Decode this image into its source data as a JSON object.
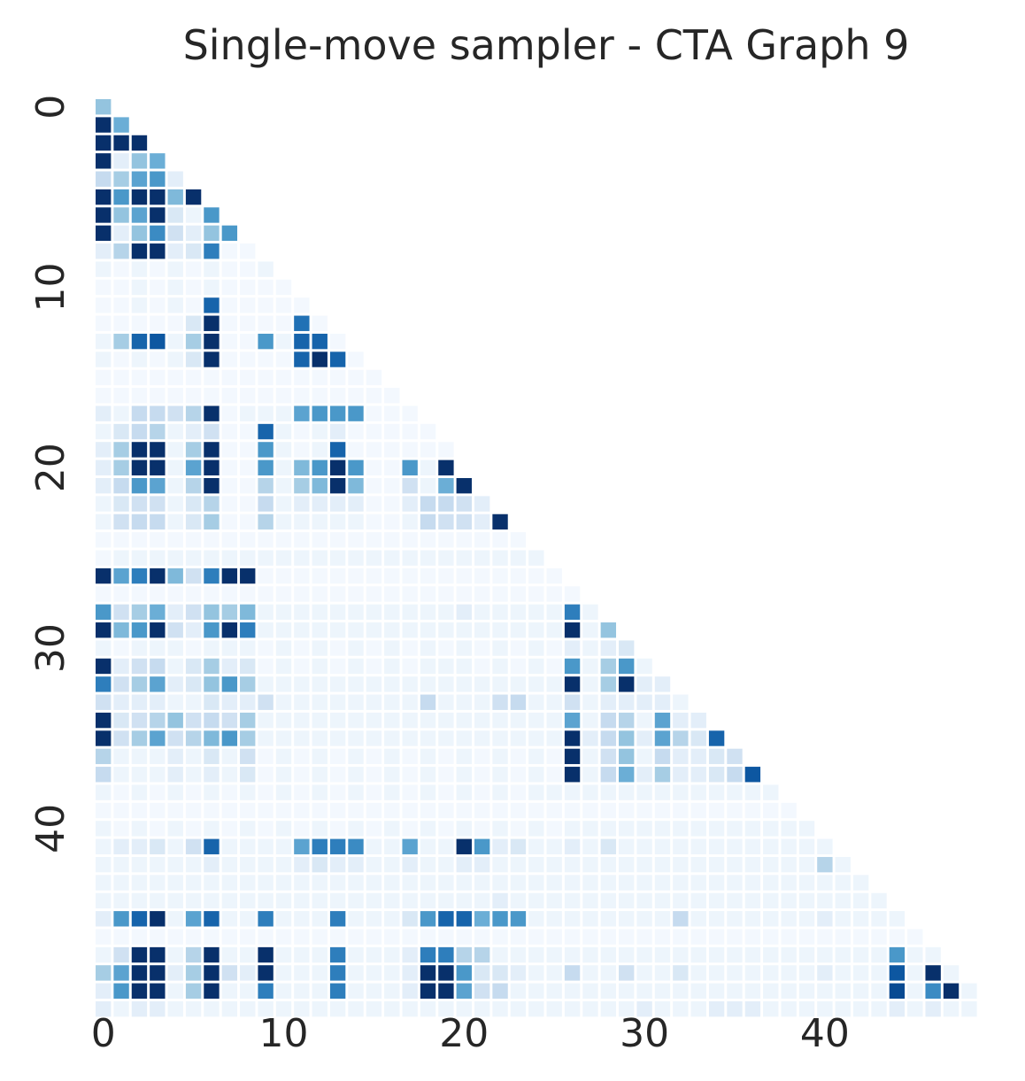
{
  "chart_data": {
    "type": "heatmap",
    "title": "Single-move sampler - CTA Graph 9",
    "xlabel": "",
    "ylabel": "",
    "n": 49,
    "layout": "lower-triangle (including diagonal), row i has columns 0..i",
    "colormap": "Blues",
    "value_range": [
      0,
      1
    ],
    "colorbar": false,
    "grid": false,
    "x_ticks": [
      0,
      10,
      20,
      30,
      40
    ],
    "y_ticks": [
      0,
      10,
      20,
      30,
      40
    ],
    "x_tick_labels": [
      "0",
      "10",
      "20",
      "30",
      "40"
    ],
    "y_tick_labels": [
      "0",
      "10",
      "20",
      "30",
      "40"
    ],
    "colors": {
      "background": "#ffffff",
      "text": "#262626",
      "low": "#f7fbff",
      "high": "#08306b"
    },
    "rows": [
      [
        0.4
      ],
      [
        1.0,
        0.5
      ],
      [
        1.0,
        1.0,
        1.0
      ],
      [
        1.0,
        0.1,
        0.4,
        0.5
      ],
      [
        0.25,
        0.35,
        0.55,
        0.6,
        0.1
      ],
      [
        1.0,
        0.6,
        1.0,
        1.0,
        0.45,
        1.0
      ],
      [
        1.0,
        0.4,
        0.55,
        1.0,
        0.15,
        0.05,
        0.6
      ],
      [
        1.0,
        0.1,
        0.4,
        0.65,
        0.2,
        0.1,
        0.4,
        0.6
      ],
      [
        0.1,
        0.3,
        1.0,
        1.0,
        0.1,
        0.15,
        0.7,
        0.02,
        0.02
      ],
      [
        0.05,
        0.02,
        0.05,
        0.02,
        0.05,
        0.02,
        0.05,
        0.02,
        0.02,
        0.05
      ],
      [
        0.02,
        0.02,
        0.05,
        0.02,
        0.05,
        0.02,
        0.05,
        0.02,
        0.02,
        0.02,
        0.02
      ],
      [
        0.02,
        0.02,
        0.05,
        0.02,
        0.05,
        0.02,
        0.8,
        0.02,
        0.02,
        0.02,
        0.02,
        0.02
      ],
      [
        0.02,
        0.02,
        0.02,
        0.02,
        0.02,
        0.15,
        1.0,
        0.02,
        0.02,
        0.02,
        0.02,
        0.75,
        0.02
      ],
      [
        0.05,
        0.35,
        0.8,
        0.85,
        0.05,
        0.35,
        1.0,
        0.02,
        0.02,
        0.6,
        0.05,
        0.8,
        0.8,
        0.02
      ],
      [
        0.05,
        0.02,
        0.05,
        0.02,
        0.05,
        0.15,
        1.0,
        0.02,
        0.02,
        0.02,
        0.02,
        0.8,
        1.0,
        0.8,
        0.02
      ],
      [
        0.02,
        0.02,
        0.02,
        0.02,
        0.02,
        0.02,
        0.02,
        0.02,
        0.02,
        0.02,
        0.02,
        0.02,
        0.02,
        0.02,
        0.02,
        0.02
      ],
      [
        0.02,
        0.02,
        0.02,
        0.02,
        0.02,
        0.02,
        0.02,
        0.02,
        0.02,
        0.02,
        0.02,
        0.02,
        0.02,
        0.02,
        0.02,
        0.02,
        0.02
      ],
      [
        0.1,
        0.05,
        0.25,
        0.25,
        0.2,
        0.3,
        1.0,
        0.02,
        0.05,
        0.05,
        0.05,
        0.55,
        0.6,
        0.6,
        0.6,
        0.02,
        0.02,
        0.02
      ],
      [
        0.05,
        0.15,
        0.25,
        0.3,
        0.05,
        0.1,
        0.2,
        0.02,
        0.02,
        0.8,
        0.05,
        0.02,
        0.05,
        0.1,
        0.02,
        0.02,
        0.02,
        0.02,
        0.02
      ],
      [
        0.1,
        0.35,
        1.0,
        1.0,
        0.05,
        0.35,
        1.0,
        0.02,
        0.02,
        0.6,
        0.05,
        0.02,
        0.05,
        0.8,
        0.02,
        0.02,
        0.02,
        0.02,
        0.02,
        0.02
      ],
      [
        0.1,
        0.35,
        1.0,
        1.0,
        0.05,
        0.55,
        1.0,
        0.02,
        0.02,
        0.6,
        0.05,
        0.45,
        0.6,
        1.0,
        0.6,
        0.02,
        0.02,
        0.6,
        0.05,
        1.0
      ],
      [
        0.1,
        0.25,
        0.6,
        0.55,
        0.05,
        0.3,
        1.0,
        0.02,
        0.02,
        0.3,
        0.05,
        0.35,
        0.45,
        1.0,
        0.45,
        0.02,
        0.02,
        0.2,
        0.05,
        0.5,
        1.0
      ],
      [
        0.05,
        0.15,
        0.2,
        0.2,
        0.05,
        0.15,
        0.3,
        0.02,
        0.02,
        0.25,
        0.05,
        0.1,
        0.1,
        0.1,
        0.1,
        0.02,
        0.02,
        0.1,
        0.25,
        0.25,
        0.2,
        0.1
      ],
      [
        0.05,
        0.2,
        0.25,
        0.25,
        0.05,
        0.15,
        0.35,
        0.02,
        0.02,
        0.3,
        0.05,
        0.05,
        0.05,
        0.05,
        0.05,
        0.02,
        0.02,
        0.05,
        0.25,
        0.2,
        0.2,
        0.1,
        1.0
      ],
      [
        0.02,
        0.02,
        0.02,
        0.02,
        0.02,
        0.02,
        0.02,
        0.02,
        0.02,
        0.02,
        0.02,
        0.02,
        0.02,
        0.02,
        0.02,
        0.02,
        0.02,
        0.02,
        0.02,
        0.02,
        0.02,
        0.02,
        0.02,
        0.02
      ],
      [
        0.02,
        0.05,
        0.05,
        0.05,
        0.05,
        0.05,
        0.05,
        0.05,
        0.05,
        0.05,
        0.05,
        0.05,
        0.05,
        0.05,
        0.05,
        0.05,
        0.05,
        0.05,
        0.05,
        0.05,
        0.05,
        0.05,
        0.05,
        0.05,
        0.05
      ],
      [
        1.0,
        0.55,
        0.7,
        1.0,
        0.45,
        0.2,
        0.7,
        1.0,
        1.0,
        0.02,
        0.02,
        0.02,
        0.02,
        0.02,
        0.02,
        0.02,
        0.02,
        0.02,
        0.02,
        0.02,
        0.02,
        0.02,
        0.02,
        0.02,
        0.02,
        0.02
      ],
      [
        0.02,
        0.02,
        0.02,
        0.02,
        0.02,
        0.02,
        0.02,
        0.02,
        0.02,
        0.02,
        0.02,
        0.02,
        0.02,
        0.02,
        0.02,
        0.02,
        0.02,
        0.02,
        0.02,
        0.02,
        0.02,
        0.02,
        0.02,
        0.02,
        0.02,
        0.02,
        0.02
      ],
      [
        0.6,
        0.2,
        0.35,
        0.5,
        0.1,
        0.2,
        0.4,
        0.35,
        0.45,
        0.05,
        0.05,
        0.05,
        0.05,
        0.05,
        0.05,
        0.05,
        0.05,
        0.05,
        0.05,
        0.05,
        0.1,
        0.05,
        0.05,
        0.05,
        0.05,
        0.05,
        0.7,
        0.05
      ],
      [
        1.0,
        0.45,
        0.6,
        1.0,
        0.2,
        0.1,
        0.6,
        1.0,
        0.7,
        0.05,
        0.05,
        0.05,
        0.05,
        0.05,
        0.05,
        0.05,
        0.05,
        0.05,
        0.05,
        0.05,
        0.05,
        0.05,
        0.05,
        0.05,
        0.05,
        0.05,
        1.0,
        0.05,
        0.4
      ],
      [
        0.05,
        0.02,
        0.05,
        0.05,
        0.05,
        0.02,
        0.05,
        0.05,
        0.05,
        0.02,
        0.05,
        0.02,
        0.05,
        0.02,
        0.05,
        0.02,
        0.05,
        0.02,
        0.05,
        0.02,
        0.05,
        0.02,
        0.05,
        0.02,
        0.05,
        0.02,
        0.1,
        0.05,
        0.1,
        0.15
      ],
      [
        1.0,
        0.1,
        0.2,
        0.25,
        0.05,
        0.15,
        0.35,
        0.1,
        0.15,
        0.02,
        0.05,
        0.02,
        0.05,
        0.02,
        0.05,
        0.02,
        0.05,
        0.02,
        0.05,
        0.05,
        0.05,
        0.02,
        0.05,
        0.02,
        0.05,
        0.02,
        0.6,
        0.05,
        0.35,
        0.6,
        0.05
      ],
      [
        0.7,
        0.2,
        0.35,
        0.55,
        0.1,
        0.15,
        0.4,
        0.6,
        0.35,
        0.05,
        0.05,
        0.05,
        0.05,
        0.05,
        0.05,
        0.05,
        0.05,
        0.05,
        0.05,
        0.05,
        0.05,
        0.05,
        0.05,
        0.05,
        0.05,
        0.05,
        1.0,
        0.05,
        0.35,
        1.0,
        0.1,
        0.1
      ],
      [
        0.2,
        0.1,
        0.1,
        0.1,
        0.05,
        0.05,
        0.15,
        0.1,
        0.1,
        0.2,
        0.05,
        0.05,
        0.05,
        0.05,
        0.05,
        0.05,
        0.05,
        0.05,
        0.25,
        0.05,
        0.05,
        0.05,
        0.2,
        0.25,
        0.05,
        0.05,
        0.2,
        0.05,
        0.1,
        0.1,
        0.1,
        0.1,
        0.05
      ],
      [
        1.0,
        0.15,
        0.2,
        0.3,
        0.4,
        0.2,
        0.25,
        0.2,
        0.35,
        0.05,
        0.05,
        0.05,
        0.05,
        0.05,
        0.05,
        0.05,
        0.05,
        0.05,
        0.05,
        0.05,
        0.05,
        0.05,
        0.05,
        0.05,
        0.05,
        0.05,
        0.55,
        0.05,
        0.25,
        0.3,
        0.05,
        0.55,
        0.1,
        0.1
      ],
      [
        1.0,
        0.2,
        0.35,
        0.55,
        0.2,
        0.3,
        0.45,
        0.6,
        0.35,
        0.05,
        0.05,
        0.05,
        0.05,
        0.05,
        0.05,
        0.05,
        0.05,
        0.05,
        0.05,
        0.05,
        0.05,
        0.05,
        0.05,
        0.05,
        0.05,
        0.05,
        1.0,
        0.1,
        0.25,
        0.4,
        0.1,
        0.55,
        0.3,
        0.15,
        0.8
      ],
      [
        0.3,
        0.05,
        0.05,
        0.05,
        0.1,
        0.05,
        0.15,
        0.05,
        0.2,
        0.02,
        0.05,
        0.02,
        0.05,
        0.02,
        0.05,
        0.02,
        0.05,
        0.02,
        0.05,
        0.02,
        0.05,
        0.02,
        0.05,
        0.02,
        0.05,
        0.02,
        1.0,
        0.05,
        0.2,
        0.4,
        0.05,
        0.25,
        0.1,
        0.1,
        0.15,
        0.2
      ],
      [
        0.25,
        0.05,
        0.05,
        0.05,
        0.1,
        0.05,
        0.1,
        0.05,
        0.15,
        0.02,
        0.05,
        0.02,
        0.05,
        0.02,
        0.05,
        0.02,
        0.05,
        0.02,
        0.05,
        0.02,
        0.05,
        0.02,
        0.05,
        0.02,
        0.05,
        0.02,
        1.0,
        0.05,
        0.25,
        0.5,
        0.1,
        0.35,
        0.1,
        0.1,
        0.15,
        0.25,
        0.85
      ],
      [
        0.05,
        0.02,
        0.05,
        0.02,
        0.05,
        0.02,
        0.05,
        0.02,
        0.05,
        0.02,
        0.05,
        0.02,
        0.05,
        0.02,
        0.05,
        0.02,
        0.05,
        0.02,
        0.05,
        0.02,
        0.05,
        0.02,
        0.05,
        0.02,
        0.05,
        0.05,
        0.05,
        0.05,
        0.05,
        0.05,
        0.05,
        0.05,
        0.05,
        0.05,
        0.05,
        0.05,
        0.05,
        0.05
      ],
      [
        0.02,
        0.02,
        0.02,
        0.02,
        0.02,
        0.02,
        0.02,
        0.02,
        0.02,
        0.02,
        0.02,
        0.02,
        0.02,
        0.02,
        0.02,
        0.02,
        0.02,
        0.02,
        0.02,
        0.02,
        0.02,
        0.02,
        0.02,
        0.02,
        0.02,
        0.02,
        0.02,
        0.02,
        0.02,
        0.02,
        0.02,
        0.02,
        0.02,
        0.02,
        0.02,
        0.02,
        0.02,
        0.02,
        0.02
      ],
      [
        0.05,
        0.02,
        0.05,
        0.02,
        0.05,
        0.02,
        0.05,
        0.02,
        0.05,
        0.02,
        0.05,
        0.02,
        0.05,
        0.02,
        0.05,
        0.02,
        0.05,
        0.02,
        0.05,
        0.02,
        0.05,
        0.02,
        0.05,
        0.02,
        0.05,
        0.02,
        0.05,
        0.05,
        0.05,
        0.05,
        0.05,
        0.05,
        0.05,
        0.05,
        0.05,
        0.05,
        0.05,
        0.05,
        0.05,
        0.05
      ],
      [
        0.05,
        0.1,
        0.1,
        0.15,
        0.05,
        0.2,
        0.8,
        0.05,
        0.05,
        0.05,
        0.05,
        0.55,
        0.7,
        0.7,
        0.65,
        0.05,
        0.05,
        0.55,
        0.05,
        0.05,
        1.0,
        0.6,
        0.1,
        0.15,
        0.05,
        0.05,
        0.1,
        0.05,
        0.15,
        0.05,
        0.05,
        0.05,
        0.05,
        0.05,
        0.05,
        0.05,
        0.05,
        0.05,
        0.05,
        0.05,
        0.05
      ],
      [
        0.05,
        0.05,
        0.05,
        0.05,
        0.05,
        0.05,
        0.1,
        0.05,
        0.05,
        0.05,
        0.05,
        0.1,
        0.15,
        0.1,
        0.1,
        0.05,
        0.05,
        0.1,
        0.05,
        0.05,
        0.1,
        0.1,
        0.05,
        0.05,
        0.05,
        0.05,
        0.05,
        0.05,
        0.05,
        0.05,
        0.05,
        0.05,
        0.05,
        0.05,
        0.05,
        0.05,
        0.05,
        0.05,
        0.05,
        0.05,
        0.3,
        0.05
      ],
      [
        0.05,
        0.05,
        0.05,
        0.05,
        0.05,
        0.05,
        0.05,
        0.05,
        0.05,
        0.05,
        0.05,
        0.05,
        0.05,
        0.05,
        0.05,
        0.05,
        0.05,
        0.05,
        0.05,
        0.05,
        0.05,
        0.05,
        0.05,
        0.05,
        0.05,
        0.05,
        0.05,
        0.05,
        0.05,
        0.05,
        0.05,
        0.05,
        0.05,
        0.05,
        0.05,
        0.05,
        0.05,
        0.05,
        0.05,
        0.05,
        0.05,
        0.05,
        0.05
      ],
      [
        0.05,
        0.05,
        0.05,
        0.05,
        0.05,
        0.05,
        0.05,
        0.05,
        0.05,
        0.05,
        0.05,
        0.05,
        0.05,
        0.05,
        0.05,
        0.05,
        0.05,
        0.05,
        0.05,
        0.05,
        0.05,
        0.05,
        0.1,
        0.05,
        0.05,
        0.05,
        0.05,
        0.05,
        0.05,
        0.05,
        0.05,
        0.05,
        0.05,
        0.05,
        0.05,
        0.05,
        0.05,
        0.05,
        0.05,
        0.05,
        0.05,
        0.05,
        0.05,
        0.05
      ],
      [
        0.1,
        0.6,
        0.8,
        1.0,
        0.05,
        0.55,
        0.8,
        0.05,
        0.05,
        0.7,
        0.05,
        0.05,
        0.05,
        0.7,
        0.05,
        0.05,
        0.05,
        0.15,
        0.6,
        0.8,
        0.8,
        0.5,
        0.6,
        0.6,
        0.05,
        0.05,
        0.05,
        0.05,
        0.05,
        0.05,
        0.05,
        0.05,
        0.25,
        0.05,
        0.05,
        0.05,
        0.05,
        0.05,
        0.05,
        0.05,
        0.1,
        0.05,
        0.05,
        0.05,
        0.05
      ],
      [
        0.02,
        0.02,
        0.02,
        0.02,
        0.02,
        0.02,
        0.02,
        0.02,
        0.02,
        0.02,
        0.02,
        0.02,
        0.02,
        0.02,
        0.02,
        0.02,
        0.02,
        0.02,
        0.02,
        0.02,
        0.02,
        0.02,
        0.02,
        0.02,
        0.02,
        0.02,
        0.02,
        0.02,
        0.02,
        0.02,
        0.02,
        0.02,
        0.02,
        0.02,
        0.02,
        0.02,
        0.02,
        0.02,
        0.02,
        0.02,
        0.02,
        0.02,
        0.02,
        0.02,
        0.02,
        0.02
      ],
      [
        0.05,
        0.2,
        1.0,
        1.0,
        0.05,
        0.3,
        1.0,
        0.05,
        0.05,
        1.0,
        0.05,
        0.05,
        0.05,
        0.7,
        0.05,
        0.05,
        0.05,
        0.1,
        0.7,
        0.7,
        0.3,
        0.3,
        0.05,
        0.05,
        0.05,
        0.05,
        0.05,
        0.05,
        0.05,
        0.05,
        0.05,
        0.05,
        0.05,
        0.05,
        0.05,
        0.05,
        0.05,
        0.05,
        0.05,
        0.05,
        0.05,
        0.05,
        0.05,
        0.05,
        0.6,
        0.05,
        0.05
      ],
      [
        0.35,
        0.55,
        1.0,
        1.0,
        0.1,
        0.35,
        1.0,
        0.2,
        0.1,
        1.0,
        0.05,
        0.05,
        0.05,
        0.7,
        0.05,
        0.05,
        0.05,
        0.1,
        1.0,
        1.0,
        0.6,
        0.15,
        0.15,
        0.1,
        0.05,
        0.05,
        0.25,
        0.05,
        0.05,
        0.2,
        0.05,
        0.05,
        0.15,
        0.05,
        0.05,
        0.05,
        0.05,
        0.05,
        0.05,
        0.05,
        0.1,
        0.05,
        0.05,
        0.05,
        0.85,
        0.05,
        1.0,
        0.05
      ],
      [
        0.1,
        0.6,
        1.0,
        1.0,
        0.05,
        0.35,
        1.0,
        0.05,
        0.05,
        0.7,
        0.05,
        0.05,
        0.05,
        0.7,
        0.05,
        0.05,
        0.05,
        0.1,
        1.0,
        1.0,
        0.55,
        0.2,
        0.25,
        0.05,
        0.05,
        0.05,
        0.05,
        0.05,
        0.05,
        0.05,
        0.05,
        0.05,
        0.05,
        0.05,
        0.05,
        0.05,
        0.05,
        0.05,
        0.05,
        0.05,
        0.05,
        0.05,
        0.05,
        0.05,
        0.9,
        0.05,
        0.65,
        1.0,
        0.05
      ],
      [
        0.1,
        0.05,
        0.1,
        0.1,
        0.05,
        0.05,
        0.05,
        0.05,
        0.05,
        0.05,
        0.05,
        0.05,
        0.05,
        0.05,
        0.05,
        0.05,
        0.05,
        0.05,
        0.05,
        0.05,
        0.05,
        0.05,
        0.05,
        0.05,
        0.05,
        0.05,
        0.05,
        0.05,
        0.05,
        0.05,
        0.1,
        0.05,
        0.05,
        0.05,
        0.1,
        0.1,
        0.1,
        0.05,
        0.05,
        0.05,
        0.05,
        0.05,
        0.05,
        0.05,
        0.1,
        0.05,
        0.1,
        0.05,
        0.05
      ]
    ]
  }
}
